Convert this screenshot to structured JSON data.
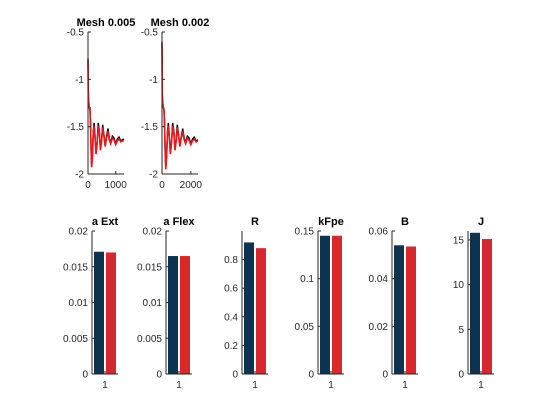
{
  "colors": {
    "axis": "#262626",
    "text": "#000000",
    "background": "#ffffff"
  },
  "chart_data": [
    {
      "type": "line",
      "title": "Mesh 0.005",
      "xlim": [
        0,
        1300
      ],
      "ylim": [
        -2,
        -0.5
      ],
      "xticks": [
        0,
        1000
      ],
      "yticks": [
        -2,
        -1.5,
        -1,
        -0.5
      ],
      "grid": false,
      "series": [
        {
          "color": "#000000",
          "x": [
            0,
            10,
            20,
            30,
            40,
            55,
            70,
            90,
            110,
            130,
            160,
            190,
            220,
            250,
            290,
            330,
            370,
            410,
            450,
            490,
            530,
            570,
            620,
            670,
            720,
            770,
            820,
            880,
            940,
            1000,
            1060,
            1120,
            1180,
            1240,
            1300
          ],
          "y": [
            -0.78,
            -1.1,
            -1.22,
            -1.25,
            -1.28,
            -1.3,
            -1.3,
            -1.45,
            -1.72,
            -1.92,
            -1.8,
            -1.55,
            -1.46,
            -1.58,
            -1.78,
            -1.66,
            -1.46,
            -1.54,
            -1.74,
            -1.64,
            -1.48,
            -1.57,
            -1.7,
            -1.6,
            -1.52,
            -1.62,
            -1.67,
            -1.6,
            -1.62,
            -1.68,
            -1.63,
            -1.61,
            -1.65,
            -1.64,
            -1.63
          ]
        },
        {
          "color": "#e8191b",
          "x": [
            0,
            10,
            20,
            30,
            40,
            55,
            70,
            90,
            110,
            130,
            160,
            190,
            220,
            250,
            290,
            330,
            370,
            410,
            450,
            490,
            530,
            570,
            620,
            670,
            720,
            770,
            820,
            880,
            940,
            1000,
            1060,
            1120,
            1180,
            1240,
            1300
          ],
          "y": [
            -0.8,
            -1.12,
            -1.24,
            -1.26,
            -1.29,
            -1.31,
            -1.31,
            -1.47,
            -1.74,
            -1.93,
            -1.82,
            -1.58,
            -1.49,
            -1.6,
            -1.79,
            -1.68,
            -1.49,
            -1.56,
            -1.75,
            -1.66,
            -1.51,
            -1.59,
            -1.71,
            -1.62,
            -1.55,
            -1.64,
            -1.68,
            -1.62,
            -1.64,
            -1.69,
            -1.65,
            -1.63,
            -1.66,
            -1.65,
            -1.65
          ]
        }
      ]
    },
    {
      "type": "line",
      "title": "Mesh 0.002",
      "xlim": [
        0,
        2500
      ],
      "ylim": [
        -2,
        -0.5
      ],
      "xticks": [
        0,
        2000
      ],
      "yticks": [
        -2,
        -1.5,
        -1,
        -0.5
      ],
      "grid": false,
      "series": [
        {
          "color": "#000000",
          "x": [
            0,
            20,
            40,
            60,
            80,
            110,
            140,
            180,
            220,
            260,
            320,
            380,
            440,
            500,
            580,
            660,
            740,
            820,
            900,
            980,
            1060,
            1140,
            1240,
            1340,
            1440,
            1540,
            1640,
            1760,
            1880,
            2000,
            2120,
            2240,
            2360,
            2500
          ],
          "y": [
            -0.6,
            -1.15,
            -1.22,
            -1.25,
            -1.28,
            -1.3,
            -1.32,
            -1.48,
            -1.75,
            -1.93,
            -1.8,
            -1.55,
            -1.46,
            -1.58,
            -1.78,
            -1.66,
            -1.46,
            -1.54,
            -1.74,
            -1.64,
            -1.48,
            -1.57,
            -1.7,
            -1.6,
            -1.52,
            -1.62,
            -1.67,
            -1.6,
            -1.62,
            -1.68,
            -1.63,
            -1.61,
            -1.65,
            -1.64
          ]
        },
        {
          "color": "#e8191b",
          "x": [
            0,
            20,
            40,
            60,
            80,
            110,
            140,
            180,
            220,
            260,
            320,
            380,
            440,
            500,
            580,
            660,
            740,
            820,
            900,
            980,
            1060,
            1140,
            1240,
            1340,
            1440,
            1540,
            1640,
            1760,
            1880,
            2000,
            2120,
            2240,
            2360,
            2500
          ],
          "y": [
            -0.62,
            -1.17,
            -1.24,
            -1.26,
            -1.29,
            -1.31,
            -1.33,
            -1.5,
            -1.77,
            -1.95,
            -1.82,
            -1.58,
            -1.49,
            -1.6,
            -1.79,
            -1.68,
            -1.49,
            -1.56,
            -1.75,
            -1.66,
            -1.51,
            -1.59,
            -1.71,
            -1.62,
            -1.55,
            -1.64,
            -1.68,
            -1.62,
            -1.64,
            -1.69,
            -1.65,
            -1.63,
            -1.66,
            -1.65
          ]
        }
      ]
    },
    {
      "type": "bar",
      "title": "a Ext",
      "categories": [
        "1"
      ],
      "ylim": [
        0,
        0.02
      ],
      "yticks": [
        0,
        0.005,
        0.01,
        0.015,
        0.02
      ],
      "series": [
        {
          "color": "#0c3350",
          "values": [
            0.0171
          ]
        },
        {
          "color": "#d7282d",
          "values": [
            0.017
          ]
        }
      ]
    },
    {
      "type": "bar",
      "title": "a Flex",
      "categories": [
        "1"
      ],
      "ylim": [
        0,
        0.02
      ],
      "yticks": [
        0,
        0.005,
        0.01,
        0.015,
        0.02
      ],
      "series": [
        {
          "color": "#0c3350",
          "values": [
            0.0165
          ]
        },
        {
          "color": "#d7282d",
          "values": [
            0.0165
          ]
        }
      ]
    },
    {
      "type": "bar",
      "title": "R",
      "categories": [
        "1"
      ],
      "ylim": [
        0,
        1
      ],
      "yticks": [
        0,
        0.2,
        0.4,
        0.6,
        0.8
      ],
      "series": [
        {
          "color": "#0c3350",
          "values": [
            0.92
          ]
        },
        {
          "color": "#d7282d",
          "values": [
            0.88
          ]
        }
      ]
    },
    {
      "type": "bar",
      "title": "kFpe",
      "categories": [
        "1"
      ],
      "ylim": [
        0,
        0.15
      ],
      "yticks": [
        0,
        0.05,
        0.1,
        0.15
      ],
      "series": [
        {
          "color": "#0c3350",
          "values": [
            0.145
          ]
        },
        {
          "color": "#d7282d",
          "values": [
            0.145
          ]
        }
      ]
    },
    {
      "type": "bar",
      "title": "B",
      "categories": [
        "1"
      ],
      "ylim": [
        0,
        0.06
      ],
      "yticks": [
        0,
        0.02,
        0.04,
        0.06
      ],
      "series": [
        {
          "color": "#0c3350",
          "values": [
            0.054
          ]
        },
        {
          "color": "#d7282d",
          "values": [
            0.0535
          ]
        }
      ]
    },
    {
      "type": "bar",
      "title": "J",
      "categories": [
        "1"
      ],
      "ylim": [
        0,
        16
      ],
      "yticks": [
        0,
        5,
        10,
        15
      ],
      "series": [
        {
          "color": "#0c3350",
          "values": [
            15.8
          ]
        },
        {
          "color": "#d7282d",
          "values": [
            15.1
          ]
        }
      ]
    }
  ]
}
